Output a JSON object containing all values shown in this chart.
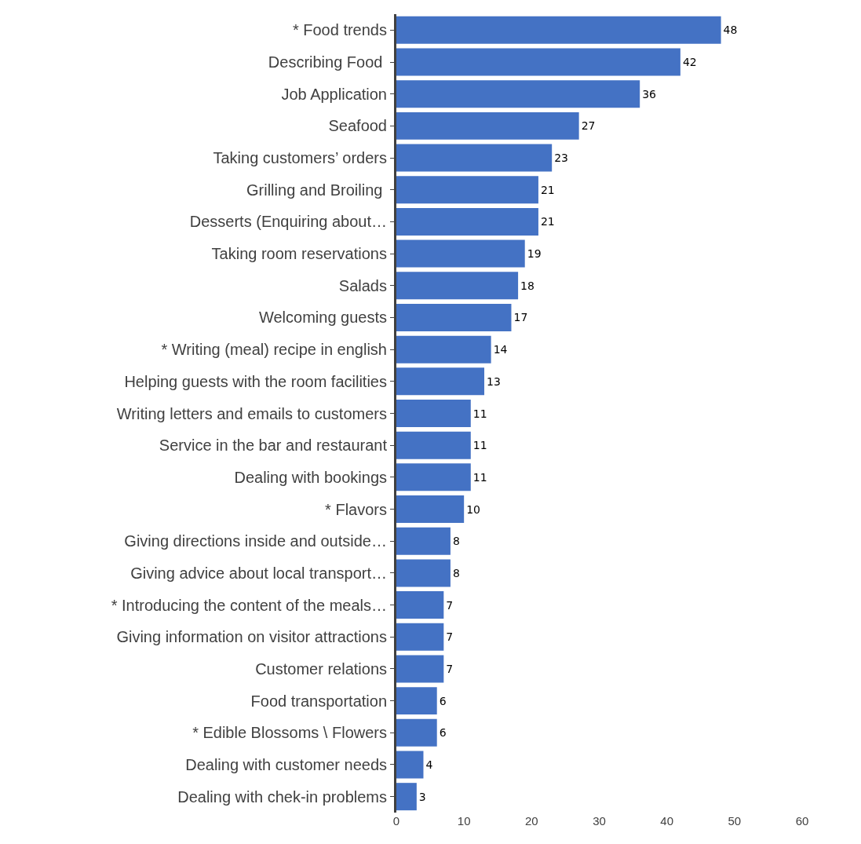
{
  "chart_data": {
    "type": "bar",
    "orientation": "horizontal",
    "categories": [
      "* Food trends",
      "Describing Food ",
      "Job Application",
      "Seafood",
      "Taking customers’ orders",
      "Grilling and Broiling ",
      "Desserts (Enquiring about…",
      "Taking room reservations",
      "Salads",
      "Welcoming guests",
      "* Writing (meal) recipe in english",
      "Helping guests with the room facilities",
      "Writing letters and emails to customers",
      "Service in the bar and restaurant",
      "Dealing with bookings",
      "* Flavors",
      "Giving directions inside and outside…",
      "Giving advice about local transport…",
      "* Introducing the content of the meals…",
      "Giving information on visitor attractions",
      "Customer relations",
      "Food transportation",
      "* Edible Blossoms \\ Flowers",
      "Dealing with customer needs",
      "Dealing with chek-in problems"
    ],
    "values": [
      48,
      42,
      36,
      27,
      23,
      21,
      21,
      19,
      18,
      17,
      14,
      13,
      11,
      11,
      11,
      10,
      8,
      8,
      7,
      7,
      7,
      6,
      6,
      4,
      3
    ],
    "color": "#4472c4",
    "data_labels": true,
    "legend": false,
    "xlim": [
      0,
      60
    ],
    "xticks": [
      0,
      10,
      20,
      30,
      40,
      50,
      60
    ]
  }
}
